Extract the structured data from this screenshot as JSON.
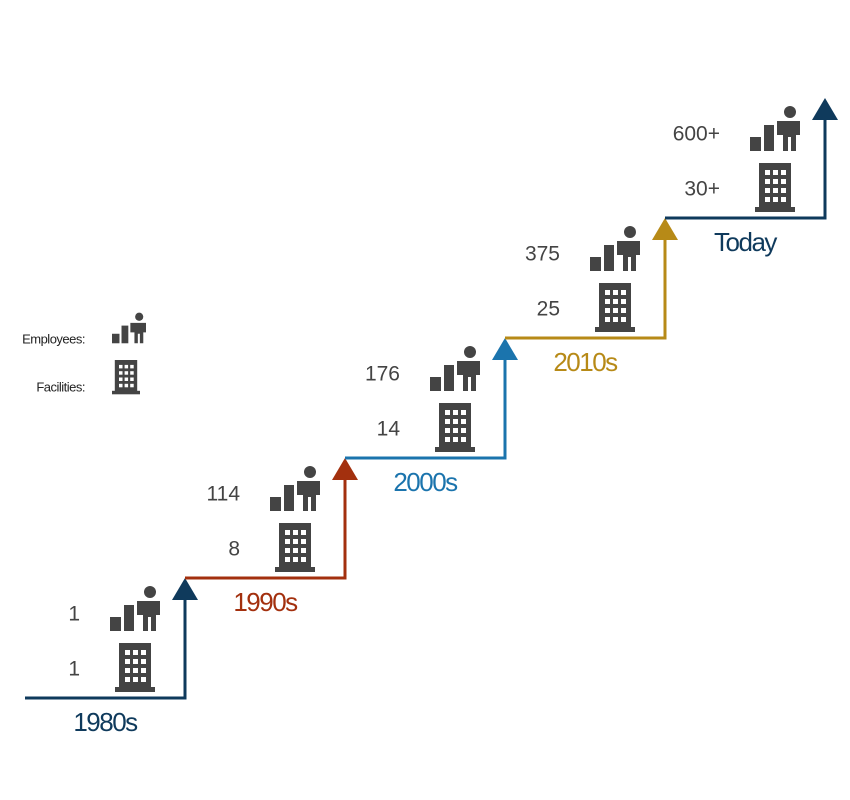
{
  "legend": {
    "employees": "Employees:",
    "facilities": "Facilities:"
  },
  "steps": [
    {
      "label": "1980s",
      "color": "#0f3a5c",
      "employees": "1",
      "facilities": "1"
    },
    {
      "label": "1990s",
      "color": "#a3300e",
      "employees": "114",
      "facilities": "8"
    },
    {
      "label": "2000s",
      "color": "#1b74ad",
      "employees": "176",
      "facilities": "14"
    },
    {
      "label": "2010s",
      "color": "#b78a17",
      "employees": "375",
      "facilities": "25"
    },
    {
      "label": "Today",
      "color": "#0f3a5c",
      "employees": "600+",
      "facilities": "30+"
    }
  ]
}
